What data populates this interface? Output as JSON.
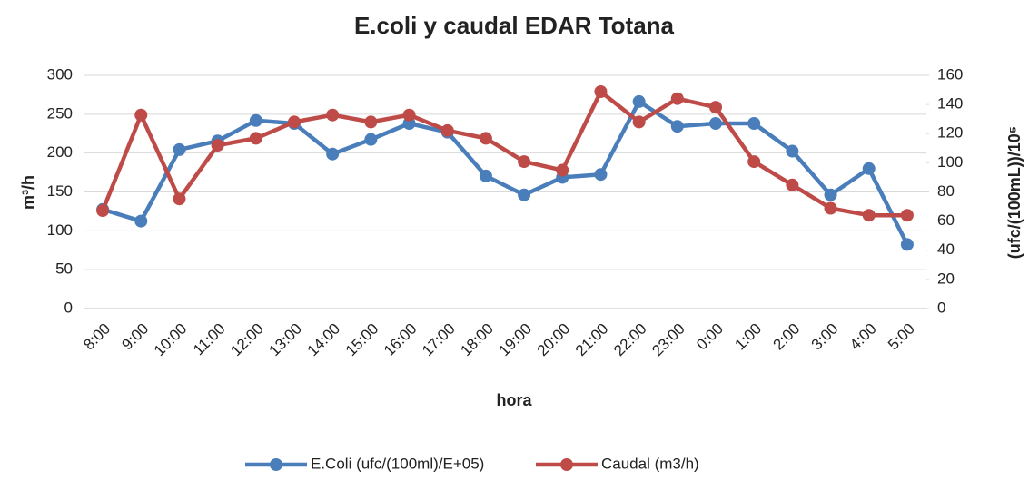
{
  "chart_data": {
    "type": "line",
    "title": "E.coli y caudal EDAR Totana",
    "x_label": "hora",
    "y_label": "m³/h",
    "y2_label": "(ufc/(100mL))/10⁵",
    "categories": [
      "8:00",
      "9:00",
      "10:00",
      "11:00",
      "12:00",
      "13:00",
      "14:00",
      "15:00",
      "16:00",
      "17:00",
      "18:00",
      "19:00",
      "20:00",
      "21:00",
      "22:00",
      "23:00",
      "0:00",
      "1:00",
      "2:00",
      "3:00",
      "4:00",
      "5:00"
    ],
    "series": [
      {
        "name": "E.Coli (ufc/(100ml)/E+05)",
        "color": "#4a7ebb",
        "axis": "y2",
        "values": [
          68,
          60,
          109,
          115,
          129,
          127,
          106,
          116,
          127,
          121,
          91,
          78,
          90,
          92,
          142,
          125,
          127,
          127,
          108,
          78,
          96,
          44
        ]
      },
      {
        "name": "Caudal (m3/h)",
        "color": "#be4b48",
        "values": [
          126,
          249,
          141,
          210,
          219,
          240,
          249,
          240,
          249,
          229,
          219,
          189,
          178,
          279,
          240,
          270,
          259,
          189,
          159,
          129,
          120,
          120
        ]
      }
    ],
    "ylim": [
      0,
      300
    ],
    "yticks": [
      0,
      50,
      100,
      150,
      200,
      250,
      300
    ],
    "y2lim": [
      0,
      160
    ],
    "y2ticks": [
      0,
      20,
      40,
      60,
      80,
      100,
      120,
      140,
      160
    ],
    "legend": "bottom"
  }
}
